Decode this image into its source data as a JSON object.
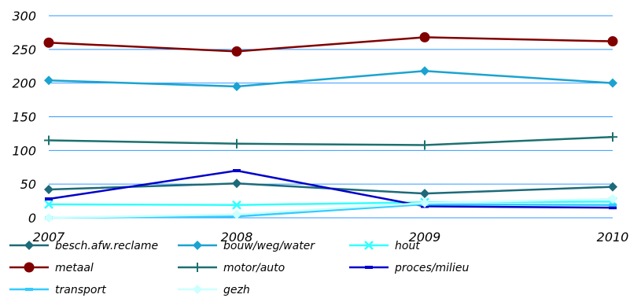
{
  "chart_data": {
    "type": "line",
    "x": [
      "2007",
      "2008",
      "2009",
      "2010"
    ],
    "ylim": [
      0,
      300
    ],
    "yticks": [
      0,
      50,
      100,
      150,
      200,
      250,
      300
    ],
    "grid": true,
    "legend_position": "bottom",
    "series": [
      {
        "name": "besch.afw.reclame",
        "color": "#1d6a7a",
        "marker": "diamond",
        "values": [
          42,
          51,
          36,
          46
        ]
      },
      {
        "name": "bouw/weg/water",
        "color": "#1aa3d1",
        "marker": "diamond",
        "values": [
          204,
          195,
          218,
          200
        ]
      },
      {
        "name": "hout",
        "color": "#33ffff",
        "marker": "x",
        "values": [
          20,
          19,
          23,
          24
        ]
      },
      {
        "name": "metaal",
        "color": "#800000",
        "marker": "circle",
        "values": [
          260,
          247,
          268,
          262
        ]
      },
      {
        "name": "motor/auto",
        "color": "#1d7070",
        "marker": "plus",
        "values": [
          115,
          110,
          108,
          120
        ]
      },
      {
        "name": "proces/milieu",
        "color": "#0000cc",
        "marker": "dash",
        "values": [
          28,
          70,
          17,
          15
        ]
      },
      {
        "name": "transport",
        "color": "#33ccff",
        "marker": "dash",
        "values": [
          0,
          2,
          20,
          19
        ]
      },
      {
        "name": "gezh",
        "color": "#ccffff",
        "marker": "diamond",
        "values": [
          0,
          5,
          22,
          28
        ]
      }
    ]
  }
}
